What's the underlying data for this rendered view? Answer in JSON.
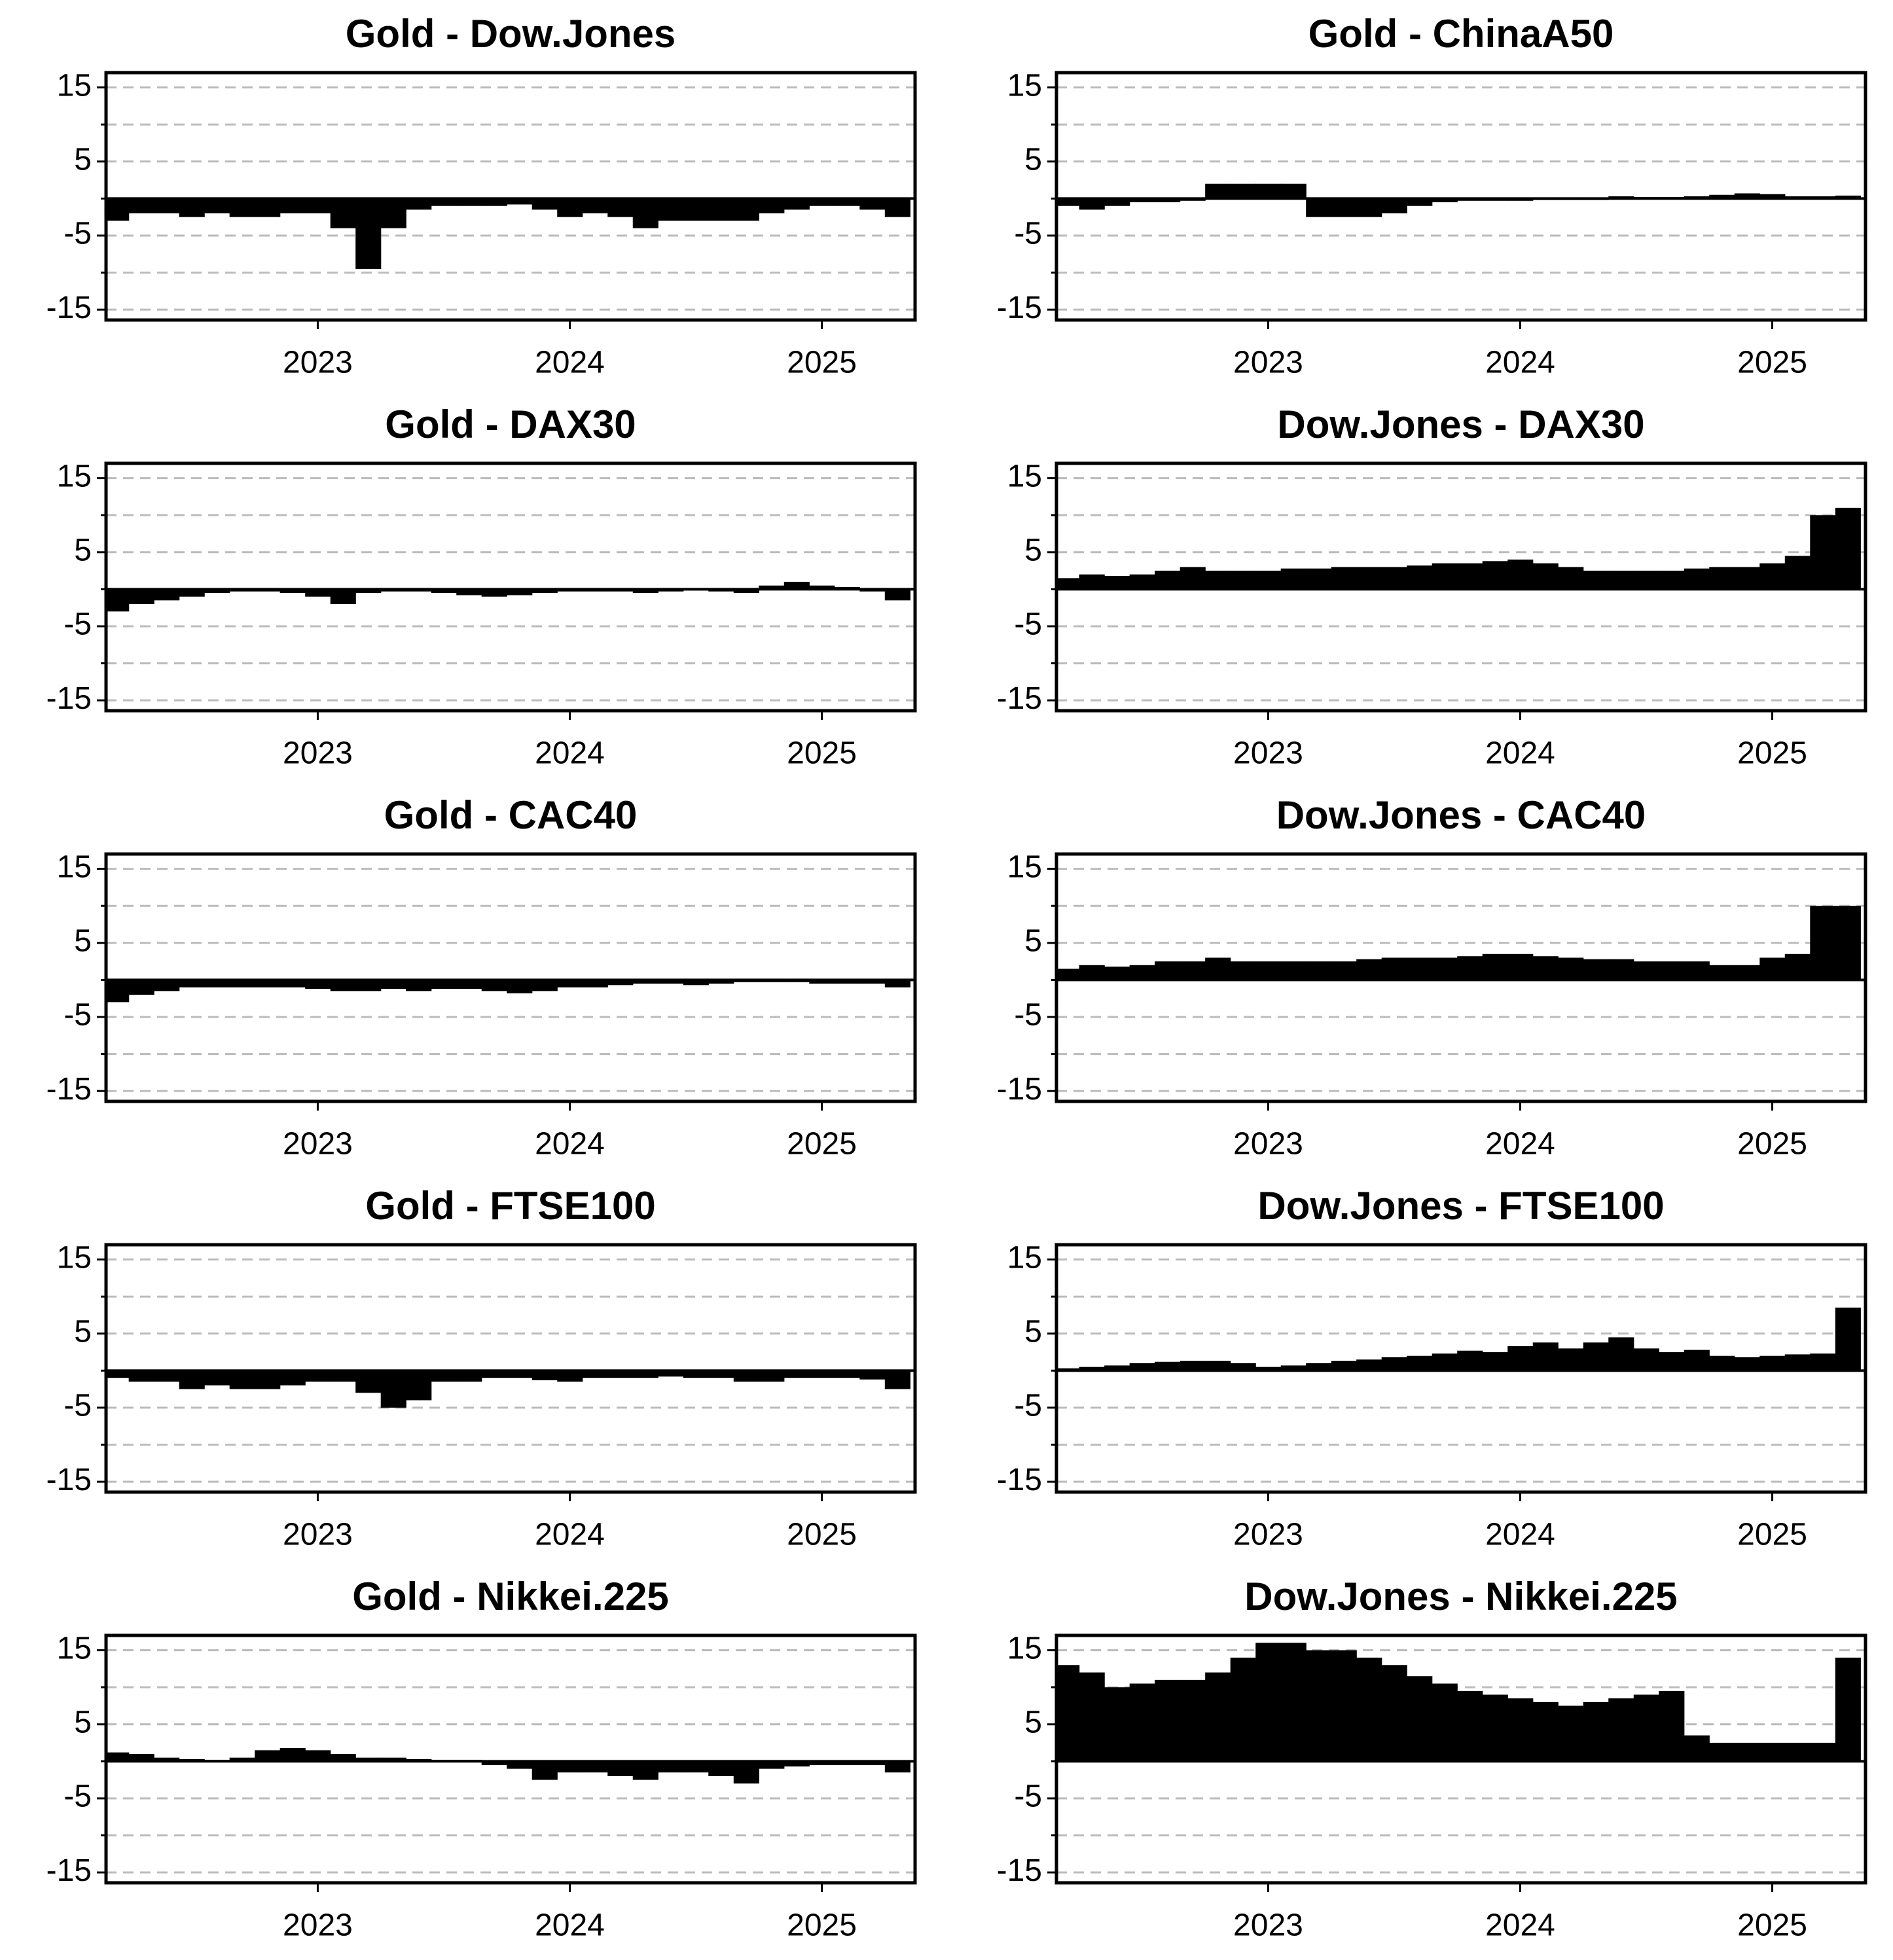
{
  "chart_data": [
    {
      "type": "bar",
      "title": "Gold - Dow.Jones",
      "color": "#000000",
      "x": [
        2022.2,
        2022.3,
        2022.4,
        2022.5,
        2022.6,
        2022.7,
        2022.8,
        2022.9,
        2023.0,
        2023.1,
        2023.2,
        2023.3,
        2023.4,
        2023.5,
        2023.6,
        2023.7,
        2023.8,
        2023.9,
        2024.0,
        2024.1,
        2024.2,
        2024.3,
        2024.4,
        2024.5,
        2024.6,
        2024.7,
        2024.8,
        2024.9,
        2025.0,
        2025.1,
        2025.2,
        2025.3
      ],
      "values": [
        -3,
        -2,
        -2,
        -2.5,
        -2,
        -2.5,
        -2.5,
        -2,
        -2,
        -4,
        -9.5,
        -4,
        -1.5,
        -1,
        -1,
        -1,
        -0.8,
        -1.5,
        -2.5,
        -2,
        -2.5,
        -4,
        -3,
        -3,
        -3,
        -3,
        -2,
        -1.5,
        -1,
        -1,
        -1.5,
        -2.5
      ],
      "xlim": [
        2022.16,
        2025.37
      ],
      "xticks": [
        2023,
        2024,
        2025
      ],
      "ylim": [
        -16.4,
        17
      ],
      "yticks": [
        -15,
        -5,
        5,
        15
      ],
      "minor_yticks": [
        -10,
        0,
        10
      ],
      "grid": true
    },
    {
      "type": "bar",
      "title": "Gold - ChinaA50",
      "color": "#000000",
      "x": [
        2022.2,
        2022.3,
        2022.4,
        2022.5,
        2022.6,
        2022.7,
        2022.8,
        2022.9,
        2023.0,
        2023.1,
        2023.2,
        2023.3,
        2023.4,
        2023.5,
        2023.6,
        2023.7,
        2023.8,
        2023.9,
        2024.0,
        2024.1,
        2024.2,
        2024.3,
        2024.4,
        2024.5,
        2024.6,
        2024.7,
        2024.8,
        2024.9,
        2025.0,
        2025.1,
        2025.2,
        2025.3
      ],
      "values": [
        -1,
        -1.5,
        -1,
        -0.5,
        -0.5,
        -0.3,
        2,
        2,
        2,
        2,
        -2.5,
        -2.5,
        -2.5,
        -2,
        -1,
        -0.5,
        -0.3,
        -0.3,
        -0.3,
        -0.2,
        -0.2,
        -0.2,
        0.3,
        0.2,
        0.2,
        0.3,
        0.5,
        0.7,
        0.6,
        0.3,
        0.3,
        0.4
      ],
      "xlim": [
        2022.16,
        2025.37
      ],
      "xticks": [
        2023,
        2024,
        2025
      ],
      "ylim": [
        -16.4,
        17
      ],
      "yticks": [
        -15,
        -5,
        5,
        15
      ],
      "minor_yticks": [
        -10,
        0,
        10
      ],
      "grid": true
    },
    {
      "type": "bar",
      "title": "Gold - DAX30",
      "color": "#000000",
      "x": [
        2022.2,
        2022.3,
        2022.4,
        2022.5,
        2022.6,
        2022.7,
        2022.8,
        2022.9,
        2023.0,
        2023.1,
        2023.2,
        2023.3,
        2023.4,
        2023.5,
        2023.6,
        2023.7,
        2023.8,
        2023.9,
        2024.0,
        2024.1,
        2024.2,
        2024.3,
        2024.4,
        2024.5,
        2024.6,
        2024.7,
        2024.8,
        2024.9,
        2025.0,
        2025.1,
        2025.2,
        2025.3
      ],
      "values": [
        -3,
        -2,
        -1.5,
        -1,
        -0.5,
        -0.3,
        -0.3,
        -0.5,
        -1,
        -2,
        -0.5,
        -0.3,
        -0.3,
        -0.5,
        -0.8,
        -1,
        -0.8,
        -0.5,
        -0.3,
        -0.3,
        -0.3,
        -0.5,
        -0.3,
        0,
        -0.3,
        -0.5,
        0.5,
        1,
        0.5,
        0.3,
        -0.3,
        -1.5
      ],
      "xlim": [
        2022.16,
        2025.37
      ],
      "xticks": [
        2023,
        2024,
        2025
      ],
      "ylim": [
        -16.4,
        17
      ],
      "yticks": [
        -15,
        -5,
        5,
        15
      ],
      "minor_yticks": [
        -10,
        0,
        10
      ],
      "grid": true
    },
    {
      "type": "bar",
      "title": "Dow.Jones - DAX30",
      "color": "#000000",
      "x": [
        2022.2,
        2022.3,
        2022.4,
        2022.5,
        2022.6,
        2022.7,
        2022.8,
        2022.9,
        2023.0,
        2023.1,
        2023.2,
        2023.3,
        2023.4,
        2023.5,
        2023.6,
        2023.7,
        2023.8,
        2023.9,
        2024.0,
        2024.1,
        2024.2,
        2024.3,
        2024.4,
        2024.5,
        2024.6,
        2024.7,
        2024.8,
        2024.9,
        2025.0,
        2025.1,
        2025.2,
        2025.3
      ],
      "values": [
        1.5,
        2,
        1.8,
        2,
        2.5,
        3,
        2.5,
        2.5,
        2.5,
        2.8,
        2.8,
        3,
        3,
        3,
        3.2,
        3.5,
        3.5,
        3.8,
        4,
        3.5,
        3,
        2.5,
        2.5,
        2.5,
        2.5,
        2.8,
        3,
        3,
        3.5,
        4.5,
        10,
        11
      ],
      "xlim": [
        2022.16,
        2025.37
      ],
      "xticks": [
        2023,
        2024,
        2025
      ],
      "ylim": [
        -16.4,
        17
      ],
      "yticks": [
        -15,
        -5,
        5,
        15
      ],
      "minor_yticks": [
        -10,
        0,
        10
      ],
      "grid": true
    },
    {
      "type": "bar",
      "title": "Gold - CAC40",
      "color": "#000000",
      "x": [
        2022.2,
        2022.3,
        2022.4,
        2022.5,
        2022.6,
        2022.7,
        2022.8,
        2022.9,
        2023.0,
        2023.1,
        2023.2,
        2023.3,
        2023.4,
        2023.5,
        2023.6,
        2023.7,
        2023.8,
        2023.9,
        2024.0,
        2024.1,
        2024.2,
        2024.3,
        2024.4,
        2024.5,
        2024.6,
        2024.7,
        2024.8,
        2024.9,
        2025.0,
        2025.1,
        2025.2,
        2025.3
      ],
      "values": [
        -3,
        -2,
        -1.5,
        -1,
        -1,
        -1,
        -1,
        -1,
        -1.2,
        -1.5,
        -1.5,
        -1.2,
        -1.5,
        -1.2,
        -1.2,
        -1.5,
        -1.8,
        -1.5,
        -1,
        -1,
        -0.7,
        -0.5,
        -0.5,
        -0.7,
        -0.5,
        -0.3,
        -0.3,
        -0.3,
        -0.5,
        -0.5,
        -0.5,
        -1
      ],
      "xlim": [
        2022.16,
        2025.37
      ],
      "xticks": [
        2023,
        2024,
        2025
      ],
      "ylim": [
        -16.4,
        17
      ],
      "yticks": [
        -15,
        -5,
        5,
        15
      ],
      "minor_yticks": [
        -10,
        0,
        10
      ],
      "grid": true
    },
    {
      "type": "bar",
      "title": "Dow.Jones - CAC40",
      "color": "#000000",
      "x": [
        2022.2,
        2022.3,
        2022.4,
        2022.5,
        2022.6,
        2022.7,
        2022.8,
        2022.9,
        2023.0,
        2023.1,
        2023.2,
        2023.3,
        2023.4,
        2023.5,
        2023.6,
        2023.7,
        2023.8,
        2023.9,
        2024.0,
        2024.1,
        2024.2,
        2024.3,
        2024.4,
        2024.5,
        2024.6,
        2024.7,
        2024.8,
        2024.9,
        2025.0,
        2025.1,
        2025.2,
        2025.3
      ],
      "values": [
        1.5,
        2,
        1.8,
        2,
        2.5,
        2.5,
        3,
        2.5,
        2.5,
        2.5,
        2.5,
        2.5,
        2.8,
        3,
        3,
        3,
        3.2,
        3.5,
        3.5,
        3.2,
        3,
        2.8,
        2.8,
        2.5,
        2.5,
        2.5,
        2,
        2,
        3,
        3.5,
        10,
        10
      ],
      "xlim": [
        2022.16,
        2025.37
      ],
      "xticks": [
        2023,
        2024,
        2025
      ],
      "ylim": [
        -16.4,
        17
      ],
      "yticks": [
        -15,
        -5,
        5,
        15
      ],
      "minor_yticks": [
        -10,
        0,
        10
      ],
      "grid": true
    },
    {
      "type": "bar",
      "title": "Gold - FTSE100",
      "color": "#000000",
      "x": [
        2022.2,
        2022.3,
        2022.4,
        2022.5,
        2022.6,
        2022.7,
        2022.8,
        2022.9,
        2023.0,
        2023.1,
        2023.2,
        2023.3,
        2023.4,
        2023.5,
        2023.6,
        2023.7,
        2023.8,
        2023.9,
        2024.0,
        2024.1,
        2024.2,
        2024.3,
        2024.4,
        2024.5,
        2024.6,
        2024.7,
        2024.8,
        2024.9,
        2025.0,
        2025.1,
        2025.2,
        2025.3
      ],
      "values": [
        -1,
        -1.5,
        -1.5,
        -2.5,
        -2,
        -2.5,
        -2.5,
        -2,
        -1.5,
        -1.5,
        -3,
        -5,
        -4,
        -1.5,
        -1.5,
        -1,
        -1,
        -1.3,
        -1.5,
        -1,
        -1,
        -1,
        -0.8,
        -1,
        -1,
        -1.5,
        -1.5,
        -1,
        -1,
        -1,
        -1.2,
        -2.5
      ],
      "xlim": [
        2022.16,
        2025.37
      ],
      "xticks": [
        2023,
        2024,
        2025
      ],
      "ylim": [
        -16.4,
        17
      ],
      "yticks": [
        -15,
        -5,
        5,
        15
      ],
      "minor_yticks": [
        -10,
        0,
        10
      ],
      "grid": true
    },
    {
      "type": "bar",
      "title": "Dow.Jones - FTSE100",
      "color": "#000000",
      "x": [
        2022.2,
        2022.3,
        2022.4,
        2022.5,
        2022.6,
        2022.7,
        2022.8,
        2022.9,
        2023.0,
        2023.1,
        2023.2,
        2023.3,
        2023.4,
        2023.5,
        2023.6,
        2023.7,
        2023.8,
        2023.9,
        2024.0,
        2024.1,
        2024.2,
        2024.3,
        2024.4,
        2024.5,
        2024.6,
        2024.7,
        2024.8,
        2024.9,
        2025.0,
        2025.1,
        2025.2,
        2025.3
      ],
      "values": [
        0.3,
        0.5,
        0.7,
        1,
        1.2,
        1.3,
        1.3,
        1,
        0.5,
        0.7,
        1,
        1.3,
        1.5,
        1.8,
        2,
        2.3,
        2.7,
        2.5,
        3.3,
        3.8,
        3,
        3.8,
        4.5,
        3,
        2.5,
        2.8,
        2,
        1.8,
        2,
        2.2,
        2.3,
        8.5
      ],
      "xlim": [
        2022.16,
        2025.37
      ],
      "xticks": [
        2023,
        2024,
        2025
      ],
      "ylim": [
        -16.4,
        17
      ],
      "yticks": [
        -15,
        -5,
        5,
        15
      ],
      "minor_yticks": [
        -10,
        0,
        10
      ],
      "grid": true
    },
    {
      "type": "bar",
      "title": "Gold - Nikkei.225",
      "color": "#000000",
      "x": [
        2022.2,
        2022.3,
        2022.4,
        2022.5,
        2022.6,
        2022.7,
        2022.8,
        2022.9,
        2023.0,
        2023.1,
        2023.2,
        2023.3,
        2023.4,
        2023.5,
        2023.6,
        2023.7,
        2023.8,
        2023.9,
        2024.0,
        2024.1,
        2024.2,
        2024.3,
        2024.4,
        2024.5,
        2024.6,
        2024.7,
        2024.8,
        2024.9,
        2025.0,
        2025.1,
        2025.2,
        2025.3
      ],
      "values": [
        1.2,
        1,
        0.5,
        0.3,
        0.2,
        0.5,
        1.5,
        1.8,
        1.5,
        1,
        0.5,
        0.5,
        0.3,
        0.2,
        0.2,
        -0.5,
        -1,
        -2.5,
        -1.5,
        -1.5,
        -2,
        -2.5,
        -1.5,
        -1.5,
        -2,
        -3,
        -1,
        -0.7,
        -0.5,
        -0.5,
        -0.5,
        -1.5
      ],
      "xlim": [
        2022.16,
        2025.37
      ],
      "xticks": [
        2023,
        2024,
        2025
      ],
      "ylim": [
        -16.4,
        17
      ],
      "yticks": [
        -15,
        -5,
        5,
        15
      ],
      "minor_yticks": [
        -10,
        0,
        10
      ],
      "grid": true
    },
    {
      "type": "bar",
      "title": "Dow.Jones - Nikkei.225",
      "color": "#000000",
      "x": [
        2022.2,
        2022.3,
        2022.4,
        2022.5,
        2022.6,
        2022.7,
        2022.8,
        2022.9,
        2023.0,
        2023.1,
        2023.2,
        2023.3,
        2023.4,
        2023.5,
        2023.6,
        2023.7,
        2023.8,
        2023.9,
        2024.0,
        2024.1,
        2024.2,
        2024.3,
        2024.4,
        2024.5,
        2024.6,
        2024.7,
        2024.8,
        2024.9,
        2025.0,
        2025.1,
        2025.2,
        2025.3
      ],
      "values": [
        13,
        12,
        10,
        10.5,
        11,
        11,
        12,
        14,
        16,
        16,
        15,
        15,
        14,
        13,
        11.5,
        10.5,
        9.5,
        9,
        8.5,
        8,
        7.5,
        8,
        8.5,
        9,
        9.5,
        3.5,
        2.5,
        2.5,
        2.5,
        2.5,
        2.5,
        14
      ],
      "xlim": [
        2022.16,
        2025.37
      ],
      "xticks": [
        2023,
        2024,
        2025
      ],
      "ylim": [
        -16.4,
        17
      ],
      "yticks": [
        -15,
        -5,
        5,
        15
      ],
      "minor_yticks": [
        -10,
        0,
        10
      ],
      "grid": true
    }
  ]
}
